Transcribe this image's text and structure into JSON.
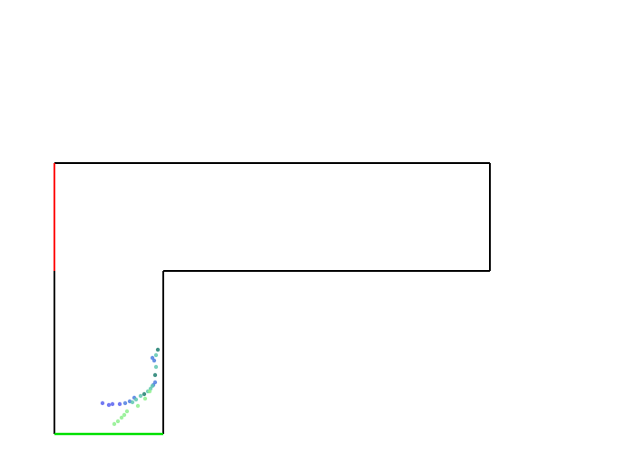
{
  "scene": {
    "background": "#ffffff",
    "wall_color": "#000000",
    "start_edge_color": "#ff0000",
    "goal_edge_color": "#00e000"
  },
  "agents": {
    "colors": [
      "#5b63f0",
      "#4f7fe0",
      "#60c7b0",
      "#1e7f70",
      "#8ef08e"
    ]
  }
}
